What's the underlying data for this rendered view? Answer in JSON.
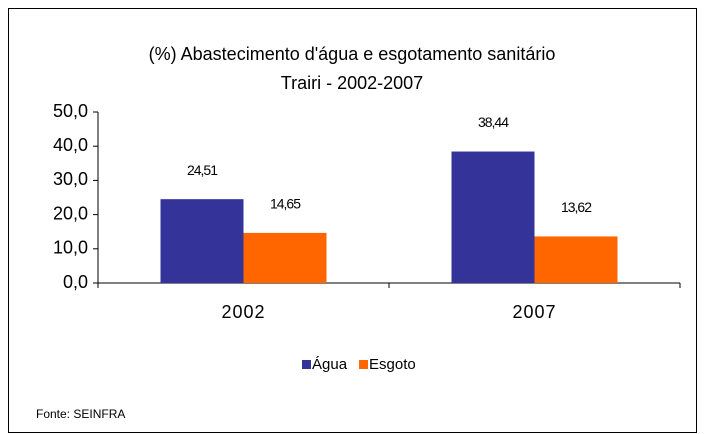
{
  "chart_data": {
    "type": "bar",
    "title": "(%) Abastecimento d'água e esgotamento sanitário",
    "subtitle": "Trairi - 2002-2007",
    "categories": [
      "2002",
      "2007"
    ],
    "series": [
      {
        "name": "Água",
        "color": "#333399",
        "values": [
          24.51,
          38.44
        ],
        "value_labels": [
          "24,51",
          "38,44"
        ]
      },
      {
        "name": "Esgoto",
        "color": "#ff6600",
        "values": [
          14.65,
          13.62
        ],
        "value_labels": [
          "14,65",
          "13,62"
        ]
      }
    ],
    "ylim": [
      0,
      50
    ],
    "yticks": [
      {
        "value": 0,
        "label": "0,0"
      },
      {
        "value": 10,
        "label": "10,0"
      },
      {
        "value": 20,
        "label": "20,0"
      },
      {
        "value": 30,
        "label": "30,0"
      },
      {
        "value": 40,
        "label": "40,0"
      },
      {
        "value": 50,
        "label": "50,0"
      }
    ],
    "legend": "bottom",
    "footnote": "Fonte: SEINFRA"
  }
}
